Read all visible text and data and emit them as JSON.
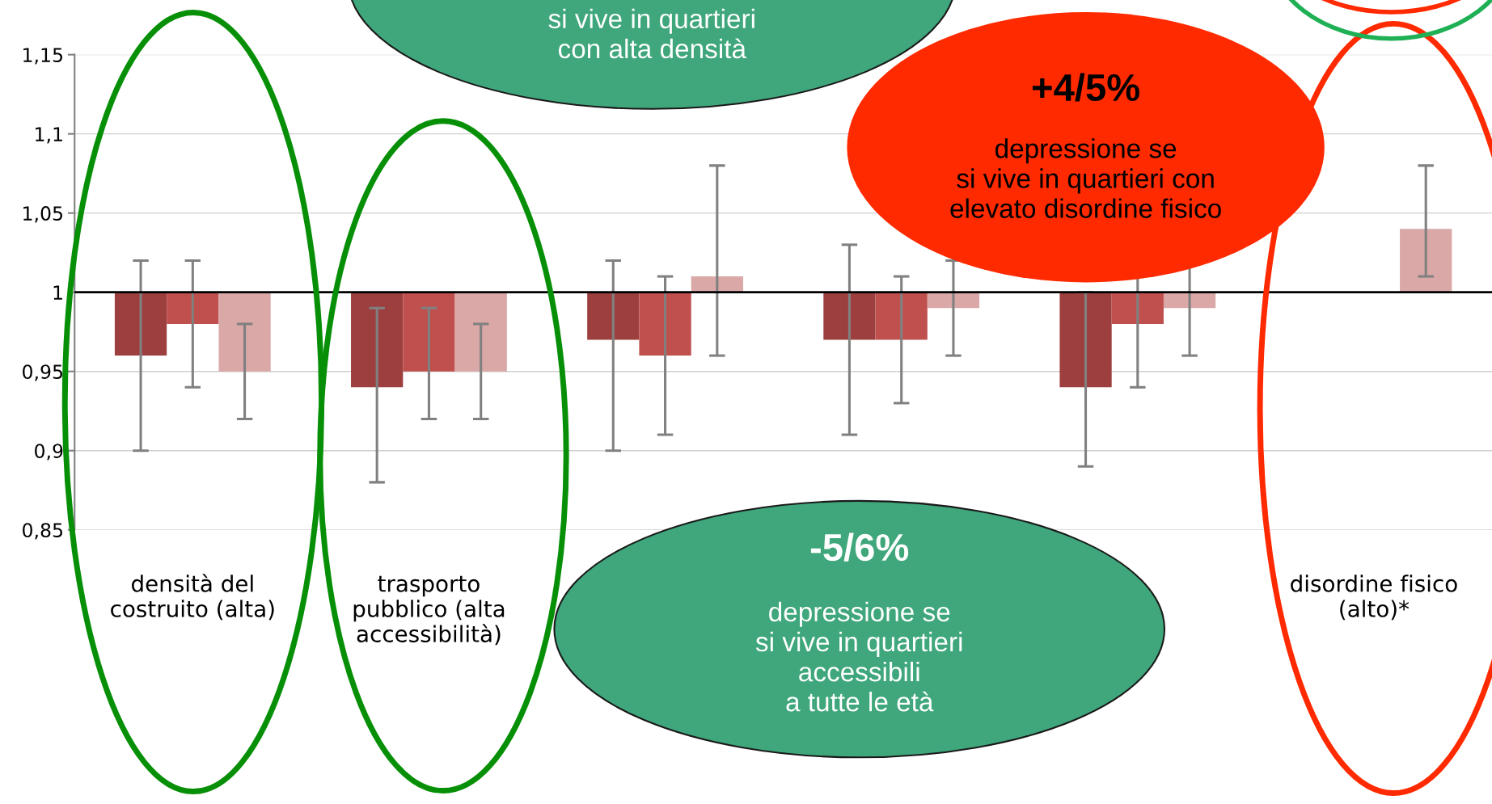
{
  "chart_data": {
    "type": "bar",
    "categories": [
      "densità del\ncostruito (alta)",
      "trasporto\npubblico (alta\naccessibilità)",
      null,
      null,
      null,
      "disordine fisico\n(alto)*"
    ],
    "series": [
      {
        "color": "#9c3f3e",
        "base": [
          1,
          1,
          1,
          1,
          1,
          null
        ],
        "values": [
          -0.04,
          -0.06,
          -0.03,
          -0.03,
          -0.06,
          null
        ],
        "errors": [
          [
            0.9,
            1.02
          ],
          [
            0.88,
            0.99
          ],
          [
            0.9,
            1.02
          ],
          [
            0.91,
            1.03
          ],
          [
            0.89,
            1.0
          ],
          null
        ]
      },
      {
        "color": "#c0504d",
        "base": [
          1,
          1,
          1,
          1,
          1,
          null
        ],
        "values": [
          -0.02,
          -0.05,
          -0.04,
          -0.03,
          -0.02,
          null
        ],
        "errors": [
          [
            0.94,
            1.02
          ],
          [
            0.92,
            0.99
          ],
          [
            0.91,
            1.01
          ],
          [
            0.93,
            1.01
          ],
          0.04,
          null
        ]
      },
      {
        "color": "#d9a8a7",
        "base": [
          1,
          1,
          1,
          1,
          1,
          1
        ],
        "values": [
          -0.05,
          -0.05,
          0.01,
          -0.01,
          -0.01,
          0.04
        ],
        "errors": [
          [
            0.92,
            0.98
          ],
          [
            0.92,
            0.98
          ],
          [
            0.96,
            1.08
          ],
          [
            0.96,
            1.02
          ],
          0.03,
          [
            1.01,
            1.08
          ]
        ]
      }
    ],
    "ylim": [
      0.85,
      1.15
    ],
    "yticks": [
      {
        "value": 0.85,
        "label": "0,85"
      },
      {
        "value": 0.9,
        "label": "0,9"
      },
      {
        "value": 0.95,
        "label": "0,95"
      },
      {
        "value": 1,
        "label": "1"
      },
      {
        "value": 1.05,
        "label": "1,05"
      },
      {
        "value": 1.1,
        "label": "1,1"
      },
      {
        "value": 1.15,
        "label": "1,15"
      }
    ],
    "grid": "y",
    "ref_lines": [
      {
        "axis": "y",
        "value": 1,
        "color": "#000000"
      }
    ],
    "annotations": [
      "si vive in quartieri\ncon alta densità",
      "+4/5%",
      "depressione se\nsi vive in quartieri con\nelevato disordine fisico",
      "-5/6%",
      "depressione se\nsi vive in quartieri\naccessibili\na tutte le età"
    ]
  }
}
